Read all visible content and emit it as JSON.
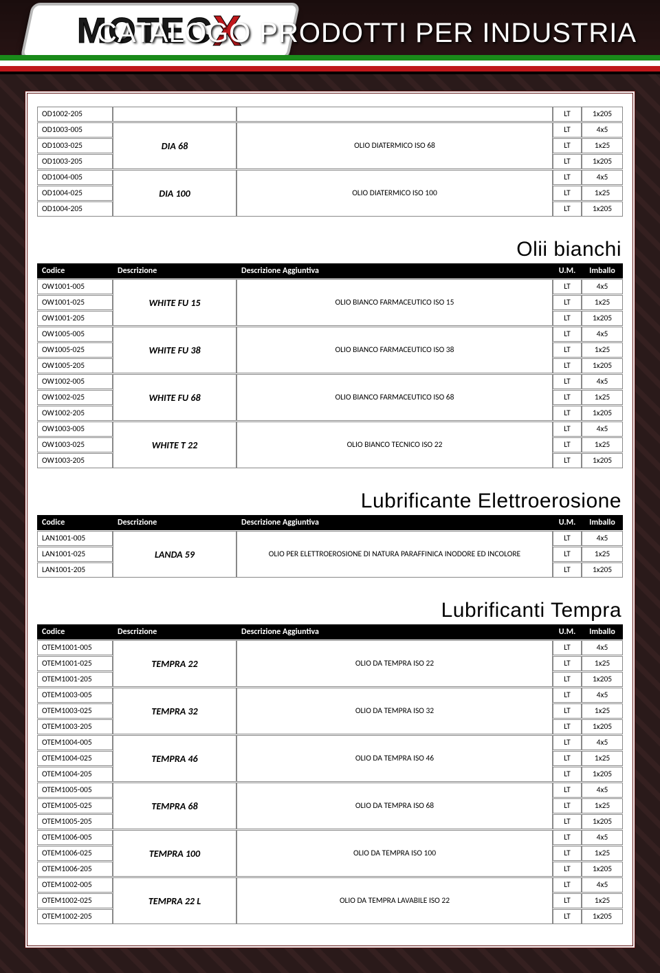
{
  "header": {
    "logo_main": "MOTEC",
    "logo_accent": "X",
    "title": "CATALOGO PRODOTTI PER INDUSTRIA"
  },
  "columns": {
    "code": "Codice",
    "desc": "Descrizione",
    "extra": "Descrizione Aggiuntiva",
    "um": "U.M.",
    "pack": "Imballo",
    "pack_short": "Imballo"
  },
  "colors": {
    "header_bg": "#000000",
    "header_fg": "#ffffff",
    "cell_border": "#888888",
    "frame_border": "#5a0d0d",
    "page_bg": "#ffffff",
    "stripe_green": "#1a8a1a",
    "stripe_white": "#ffffff",
    "stripe_red": "#c0181c",
    "logo_accent": "#c0181c"
  },
  "typography": {
    "body_font": "Calibri, Arial, sans-serif",
    "display_font": "Impact, Arial Black, sans-serif",
    "body_size_pt": 9,
    "desc_size_pt": 11,
    "section_title_size_pt": 22,
    "header_title_size_pt": 30
  },
  "top_table": {
    "groups": [
      {
        "name": "DIA 68",
        "extra": "OLIO DIATERMICO ISO 68",
        "_note": "first row OD1002-205 belongs to previous page group, shown with empty desc/extra",
        "leading_orphan": {
          "code": "OD1002-205",
          "um": "LT",
          "pack": "1x205"
        },
        "rows": [
          {
            "code": "OD1003-005",
            "um": "LT",
            "pack": "4x5"
          },
          {
            "code": "OD1003-025",
            "um": "LT",
            "pack": "1x25"
          },
          {
            "code": "OD1003-205",
            "um": "LT",
            "pack": "1x205"
          }
        ]
      },
      {
        "name": "DIA 100",
        "extra": "OLIO DIATERMICO ISO 100",
        "rows": [
          {
            "code": "OD1004-005",
            "um": "LT",
            "pack": "4x5"
          },
          {
            "code": "OD1004-025",
            "um": "LT",
            "pack": "1x25"
          },
          {
            "code": "OD1004-205",
            "um": "LT",
            "pack": "1x205"
          }
        ]
      }
    ]
  },
  "sections": [
    {
      "title": "Olii bianchi",
      "has_header": true,
      "groups": [
        {
          "name": "WHITE FU 15",
          "extra": "OLIO BIANCO FARMACEUTICO ISO 15",
          "rows": [
            {
              "code": "OW1001-005",
              "um": "LT",
              "pack": "4x5"
            },
            {
              "code": "OW1001-025",
              "um": "LT",
              "pack": "1x25"
            },
            {
              "code": "OW1001-205",
              "um": "LT",
              "pack": "1x205"
            }
          ]
        },
        {
          "name": "WHITE FU 38",
          "extra": "OLIO BIANCO FARMACEUTICO ISO 38",
          "rows": [
            {
              "code": "OW1005-005",
              "um": "LT",
              "pack": "4x5"
            },
            {
              "code": "OW1005-025",
              "um": "LT",
              "pack": "1x25"
            },
            {
              "code": "OW1005-205",
              "um": "LT",
              "pack": "1x205"
            }
          ]
        },
        {
          "name": "WHITE FU 68",
          "extra": "OLIO BIANCO FARMACEUTICO ISO 68",
          "rows": [
            {
              "code": "OW1002-005",
              "um": "LT",
              "pack": "4x5"
            },
            {
              "code": "OW1002-025",
              "um": "LT",
              "pack": "1x25"
            },
            {
              "code": "OW1002-205",
              "um": "LT",
              "pack": "1x205"
            }
          ]
        },
        {
          "name": "WHITE T 22",
          "extra": "OLIO BIANCO TECNICO ISO 22",
          "rows": [
            {
              "code": "OW1003-005",
              "um": "LT",
              "pack": "4x5"
            },
            {
              "code": "OW1003-025",
              "um": "LT",
              "pack": "1x25"
            },
            {
              "code": "OW1003-205",
              "um": "LT",
              "pack": "1x205"
            }
          ]
        }
      ]
    },
    {
      "title": "Lubrificante Elettroerosione",
      "has_header": true,
      "groups": [
        {
          "name": "LANDA 59",
          "extra": "OLIO PER ELETTROEROSIONE DI NATURA PARAFFINICA INODORE ED INCOLORE",
          "rows": [
            {
              "code": "LAN1001-005",
              "um": "LT",
              "pack": "4x5"
            },
            {
              "code": "LAN1001-025",
              "um": "LT",
              "pack": "1x25"
            },
            {
              "code": "LAN1001-205",
              "um": "LT",
              "pack": "1x205"
            }
          ]
        }
      ]
    },
    {
      "title": "Lubrificanti Tempra",
      "has_header": true,
      "groups": [
        {
          "name": "TEMPRA 22",
          "extra": "OLIO DA TEMPRA ISO 22",
          "rows": [
            {
              "code": "OTEM1001-005",
              "um": "LT",
              "pack": "4x5"
            },
            {
              "code": "OTEM1001-025",
              "um": "LT",
              "pack": "1x25"
            },
            {
              "code": "OTEM1001-205",
              "um": "LT",
              "pack": "1x205"
            }
          ]
        },
        {
          "name": "TEMPRA 32",
          "extra": "OLIO DA TEMPRA ISO 32",
          "rows": [
            {
              "code": "OTEM1003-005",
              "um": "LT",
              "pack": "4x5"
            },
            {
              "code": "OTEM1003-025",
              "um": "LT",
              "pack": "1x25"
            },
            {
              "code": "OTEM1003-205",
              "um": "LT",
              "pack": "1x205"
            }
          ]
        },
        {
          "name": "TEMPRA 46",
          "extra": "OLIO DA TEMPRA ISO 46",
          "rows": [
            {
              "code": "OTEM1004-005",
              "um": "LT",
              "pack": "4x5"
            },
            {
              "code": "OTEM1004-025",
              "um": "LT",
              "pack": "1x25"
            },
            {
              "code": "OTEM1004-205",
              "um": "LT",
              "pack": "1x205"
            }
          ]
        },
        {
          "name": "TEMPRA 68",
          "extra": "OLIO DA TEMPRA ISO 68",
          "rows": [
            {
              "code": "OTEM1005-005",
              "um": "LT",
              "pack": "4x5"
            },
            {
              "code": "OTEM1005-025",
              "um": "LT",
              "pack": "1x25"
            },
            {
              "code": "OTEM1005-205",
              "um": "LT",
              "pack": "1x205"
            }
          ]
        },
        {
          "name": "TEMPRA 100",
          "extra": "OLIO DA TEMPRA ISO 100",
          "rows": [
            {
              "code": "OTEM1006-005",
              "um": "LT",
              "pack": "4x5"
            },
            {
              "code": "OTEM1006-025",
              "um": "LT",
              "pack": "1x25"
            },
            {
              "code": "OTEM1006-205",
              "um": "LT",
              "pack": "1x205"
            }
          ]
        },
        {
          "name": "TEMPRA 22 L",
          "extra": "OLIO DA TEMPRA LAVABILE ISO 22",
          "rows": [
            {
              "code": "OTEM1002-005",
              "um": "LT",
              "pack": "4x5"
            },
            {
              "code": "OTEM1002-025",
              "um": "LT",
              "pack": "1x25"
            },
            {
              "code": "OTEM1002-205",
              "um": "LT",
              "pack": "1x205"
            }
          ]
        }
      ]
    }
  ]
}
